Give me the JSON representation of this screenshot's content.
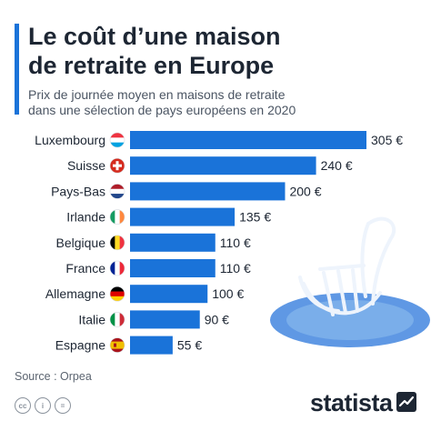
{
  "header": {
    "title_line1": "Le coût d’une maison",
    "title_line2": "de retraite en Europe",
    "subtitle_line1": "Prix de journée moyen en maisons de retraite",
    "subtitle_line2": "dans une sélection de pays européens en 2020"
  },
  "colors": {
    "accent": "#1a73d9",
    "bar": "#1a73d9",
    "text": "#1d2633",
    "illustration": "#6ea3e6"
  },
  "chart_data": {
    "type": "bar",
    "orientation": "horizontal",
    "categories": [
      "Luxembourg",
      "Suisse",
      "Pays-Bas",
      "Irlande",
      "Belgique",
      "France",
      "Allemagne",
      "Italie",
      "Espagne"
    ],
    "values": [
      305,
      240,
      200,
      135,
      110,
      110,
      100,
      90,
      55
    ],
    "value_labels": [
      "305 €",
      "240 €",
      "200 €",
      "135 €",
      "110 €",
      "110 €",
      "100 €",
      "90 €",
      "55 €"
    ],
    "flags": [
      "luxembourg-flag-icon",
      "switzerland-flag-icon",
      "netherlands-flag-icon",
      "ireland-flag-icon",
      "belgium-flag-icon",
      "france-flag-icon",
      "germany-flag-icon",
      "italy-flag-icon",
      "spain-flag-icon"
    ],
    "title": "Le coût d’une maison de retraite en Europe",
    "xlabel": "",
    "ylabel": "",
    "xlim": [
      0,
      305
    ]
  },
  "footer": {
    "source": "Source : Orpea",
    "license_icons": [
      "cc-icon",
      "by-icon",
      "nd-icon"
    ],
    "license_labels": [
      "cc",
      "i",
      "="
    ],
    "brand": "statista"
  }
}
